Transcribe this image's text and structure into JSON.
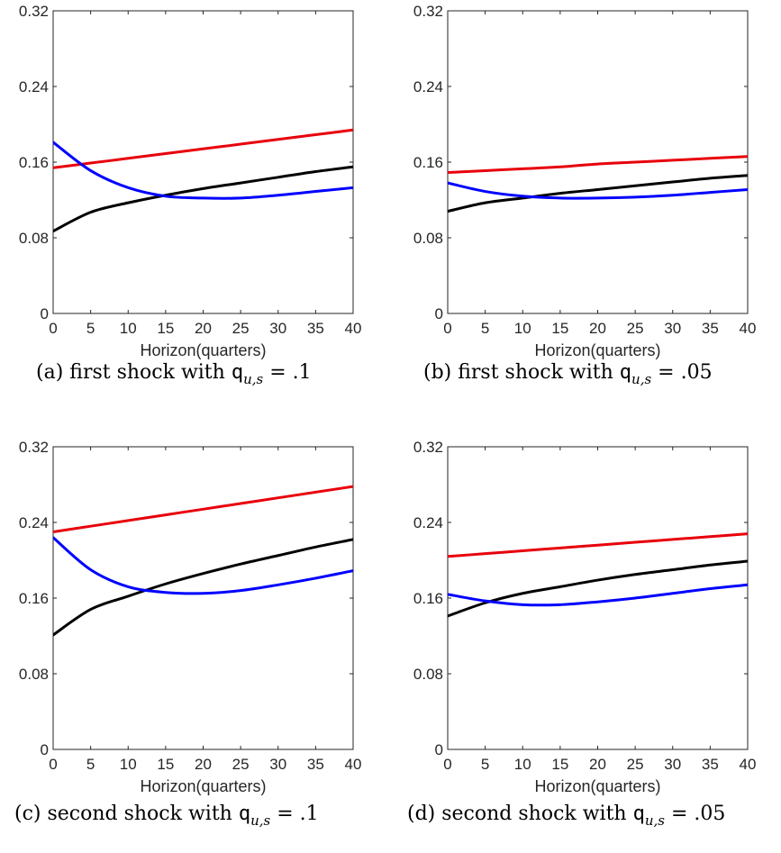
{
  "figure": {
    "captions": [
      {
        "prefix": "(a) first shock with ",
        "q": "q",
        "sub": "u,s",
        "rest": " = .1"
      },
      {
        "prefix": "(b) first shock with ",
        "q": "q",
        "sub": "u,s",
        "rest": " = .05"
      },
      {
        "prefix": "(c) second shock with ",
        "q": "q",
        "sub": "u,s",
        "rest": " = .1"
      },
      {
        "prefix": "(d) second shock with ",
        "q": "q",
        "sub": "u,s",
        "rest": " = .05"
      }
    ]
  },
  "chart_data": [
    {
      "type": "line",
      "xlabel": "Horizon(quarters)",
      "ylabel": "",
      "xlim": [
        0,
        40
      ],
      "ylim": [
        0,
        0.32
      ],
      "xticks": [
        0,
        5,
        10,
        15,
        20,
        25,
        30,
        35,
        40
      ],
      "yticks": [
        0,
        0.08,
        0.16,
        0.24,
        0.32
      ],
      "ytick_labels": [
        "0",
        "0.08",
        "0.16",
        "0.24",
        "0.32"
      ],
      "grid": false,
      "x": [
        0,
        5,
        10,
        15,
        20,
        25,
        30,
        35,
        40
      ],
      "series": [
        {
          "color": "#e8000b",
          "values": [
            0.154,
            0.159,
            0.164,
            0.169,
            0.174,
            0.179,
            0.184,
            0.189,
            0.194
          ]
        },
        {
          "color": "#000000",
          "values": [
            0.087,
            0.107,
            0.117,
            0.125,
            0.132,
            0.138,
            0.144,
            0.15,
            0.155
          ]
        },
        {
          "color": "#0000ff",
          "values": [
            0.181,
            0.151,
            0.133,
            0.124,
            0.122,
            0.122,
            0.125,
            0.129,
            0.133
          ]
        }
      ]
    },
    {
      "type": "line",
      "xlabel": "Horizon(quarters)",
      "ylabel": "",
      "xlim": [
        0,
        40
      ],
      "ylim": [
        0,
        0.32
      ],
      "xticks": [
        0,
        5,
        10,
        15,
        20,
        25,
        30,
        35,
        40
      ],
      "yticks": [
        0,
        0.08,
        0.16,
        0.24,
        0.32
      ],
      "ytick_labels": [
        "0",
        "0.08",
        "0.16",
        "0.24",
        "0.32"
      ],
      "grid": false,
      "x": [
        0,
        5,
        10,
        15,
        20,
        25,
        30,
        35,
        40
      ],
      "series": [
        {
          "color": "#e8000b",
          "values": [
            0.149,
            0.151,
            0.153,
            0.155,
            0.158,
            0.16,
            0.162,
            0.164,
            0.166
          ]
        },
        {
          "color": "#000000",
          "values": [
            0.108,
            0.117,
            0.122,
            0.127,
            0.131,
            0.135,
            0.139,
            0.143,
            0.146
          ]
        },
        {
          "color": "#0000ff",
          "values": [
            0.138,
            0.129,
            0.124,
            0.122,
            0.122,
            0.123,
            0.125,
            0.128,
            0.131
          ]
        }
      ]
    },
    {
      "type": "line",
      "xlabel": "Horizon(quarters)",
      "ylabel": "",
      "xlim": [
        0,
        40
      ],
      "ylim": [
        0,
        0.32
      ],
      "xticks": [
        0,
        5,
        10,
        15,
        20,
        25,
        30,
        35,
        40
      ],
      "yticks": [
        0,
        0.08,
        0.16,
        0.24,
        0.32
      ],
      "ytick_labels": [
        "0",
        "0.08",
        "0.16",
        "0.24",
        "0.32"
      ],
      "grid": false,
      "x": [
        0,
        5,
        10,
        15,
        20,
        25,
        30,
        35,
        40
      ],
      "series": [
        {
          "color": "#e8000b",
          "values": [
            0.23,
            0.236,
            0.242,
            0.248,
            0.254,
            0.26,
            0.266,
            0.272,
            0.278
          ]
        },
        {
          "color": "#000000",
          "values": [
            0.121,
            0.148,
            0.162,
            0.175,
            0.186,
            0.196,
            0.205,
            0.214,
            0.222
          ]
        },
        {
          "color": "#0000ff",
          "values": [
            0.224,
            0.19,
            0.172,
            0.166,
            0.165,
            0.168,
            0.174,
            0.181,
            0.189
          ]
        }
      ]
    },
    {
      "type": "line",
      "xlabel": "Horizon(quarters)",
      "ylabel": "",
      "xlim": [
        0,
        40
      ],
      "ylim": [
        0,
        0.32
      ],
      "xticks": [
        0,
        5,
        10,
        15,
        20,
        25,
        30,
        35,
        40
      ],
      "yticks": [
        0,
        0.08,
        0.16,
        0.24,
        0.32
      ],
      "ytick_labels": [
        "0",
        "0.08",
        "0.16",
        "0.24",
        "0.32"
      ],
      "grid": false,
      "x": [
        0,
        5,
        10,
        15,
        20,
        25,
        30,
        35,
        40
      ],
      "series": [
        {
          "color": "#e8000b",
          "values": [
            0.204,
            0.207,
            0.21,
            0.213,
            0.216,
            0.219,
            0.222,
            0.225,
            0.228
          ]
        },
        {
          "color": "#000000",
          "values": [
            0.141,
            0.155,
            0.165,
            0.172,
            0.179,
            0.185,
            0.19,
            0.195,
            0.199
          ]
        },
        {
          "color": "#0000ff",
          "values": [
            0.164,
            0.157,
            0.153,
            0.153,
            0.156,
            0.16,
            0.165,
            0.17,
            0.174
          ]
        }
      ]
    }
  ]
}
